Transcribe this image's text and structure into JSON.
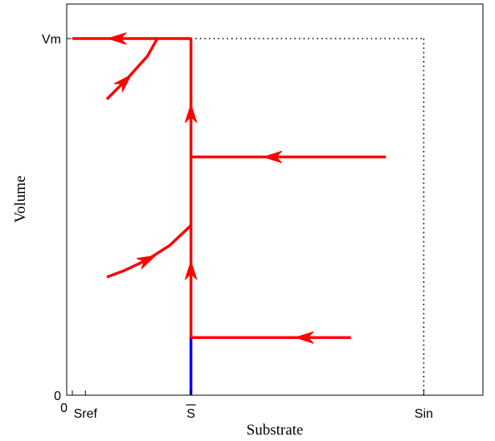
{
  "chart_data": {
    "type": "line",
    "xlabel": "Substrate",
    "ylabel": "Volume",
    "xlim": [
      0,
      1.0
    ],
    "ylim": [
      0,
      1.0
    ],
    "x_ticks": [
      {
        "value": 0,
        "label": "0"
      },
      {
        "value": 0.035,
        "label": "Sref"
      },
      {
        "value": 0.3167,
        "label": "S",
        "overline": true
      },
      {
        "value": 0.9385,
        "label": "Sin"
      }
    ],
    "y_ticks": [
      {
        "value": 0,
        "label": "0"
      },
      {
        "value": 1.0,
        "label": "Vm"
      }
    ],
    "reference_lines": [
      {
        "type": "horizontal",
        "y": 1.0,
        "x_from": 0.3167,
        "x_to": 0.9385,
        "style": "dotted",
        "color": "#000000"
      },
      {
        "type": "vertical",
        "x": 0.9385,
        "y_from": 0,
        "y_to": 1.0,
        "style": "dotted",
        "color": "#000000"
      }
    ],
    "series": [
      {
        "points": [
          [
            0.3167,
            0
          ],
          [
            0.3167,
            0.1617
          ]
        ],
        "color": "#0000ff",
        "arrows": []
      },
      {
        "points": [
          [
            0.3167,
            0.1617
          ],
          [
            0.3167,
            1.0
          ]
        ],
        "color": "#ff0000",
        "arrows": [
          [
            0.3167,
            0.35
          ],
          [
            0.3167,
            0.79
          ]
        ]
      },
      {
        "points": [
          [
            0.744,
            0.1617
          ],
          [
            0.3167,
            0.1617
          ]
        ],
        "color": "#ff0000",
        "arrows": [
          [
            0.62,
            0.1617
          ]
        ]
      },
      {
        "points": [
          [
            0.8375,
            0.668
          ],
          [
            0.3167,
            0.668
          ]
        ],
        "color": "#ff0000",
        "arrows": [
          [
            0.535,
            0.668
          ]
        ]
      },
      {
        "points": [
          [
            0.092,
            0.331
          ],
          [
            0.14,
            0.35
          ],
          [
            0.2,
            0.38
          ],
          [
            0.26,
            0.42
          ],
          [
            0.3167,
            0.476
          ]
        ],
        "color": "#ff0000",
        "arrows": [
          [
            0.2,
            0.38
          ]
        ]
      },
      {
        "points": [
          [
            0.092,
            0.83
          ],
          [
            0.14,
            0.88
          ],
          [
            0.2,
            0.95
          ],
          [
            0.227,
            1.0
          ]
        ],
        "color": "#ff0000",
        "arrows": [
          [
            0.14,
            0.88
          ]
        ]
      },
      {
        "points": [
          [
            0.3167,
            1.0
          ],
          [
            0,
            1.0
          ]
        ],
        "color": "#ff0000",
        "arrows": [
          [
            0.12,
            1.0
          ]
        ]
      }
    ]
  }
}
